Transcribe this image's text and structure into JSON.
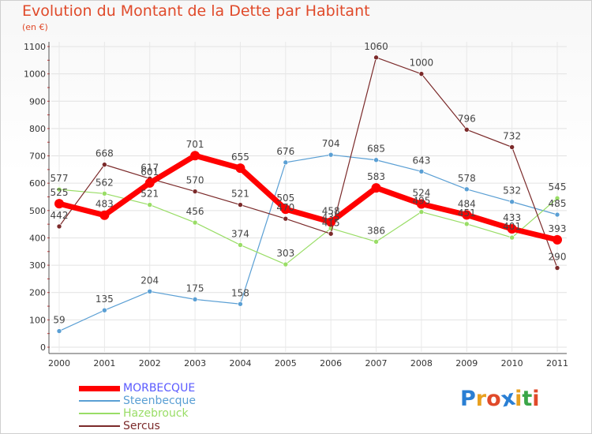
{
  "header": {
    "title": "Evolution du Montant de la Dette par Habitant",
    "subtitle": "(en €)"
  },
  "logo": {
    "text": "Proxiti",
    "letters": [
      "P",
      "r",
      "o",
      "x",
      "i",
      "t",
      "i"
    ],
    "colors": [
      "#2a7fd4",
      "#e8a020",
      "#e04a2a",
      "#2a7fd4",
      "#e8a020",
      "#3aa648",
      "#e04a2a"
    ]
  },
  "chart_data": {
    "type": "line",
    "title": "Evolution du Montant de la Dette par Habitant",
    "ylabel": "(en €)",
    "xlabel": "",
    "x": [
      "2000",
      "2001",
      "2002",
      "2003",
      "2004",
      "2005",
      "2006",
      "2007",
      "2008",
      "2009",
      "2010",
      "2011"
    ],
    "ylim": [
      0,
      1100
    ],
    "yticks": [
      0,
      100,
      200,
      300,
      400,
      500,
      600,
      700,
      800,
      900,
      1000,
      1100
    ],
    "grid": true,
    "legend_position": "bottom-left",
    "series": [
      {
        "name": "MORBECQUE",
        "color": "#ff0000",
        "line_width": 7,
        "marker_radius": 6,
        "values": [
          525,
          483,
          601,
          701,
          655,
          505,
          458,
          583,
          524,
          484,
          433,
          393
        ]
      },
      {
        "name": "Steenbecque",
        "color": "#5a9fd4",
        "line_width": 1.2,
        "marker_radius": 3,
        "values": [
          59,
          135,
          204,
          175,
          158,
          676,
          704,
          685,
          643,
          578,
          532,
          485
        ]
      },
      {
        "name": "Hazebrouck",
        "color": "#99dd66",
        "line_width": 1.2,
        "marker_radius": 3,
        "values": [
          577,
          562,
          521,
          456,
          374,
          303,
          435,
          386,
          495,
          451,
          401,
          545
        ]
      },
      {
        "name": "Sercus",
        "color": "#7b2a2a",
        "line_width": 1.2,
        "marker_radius": 3,
        "values": [
          442,
          668,
          617,
          570,
          521,
          470,
          415,
          1060,
          1000,
          796,
          732,
          290
        ]
      }
    ]
  }
}
